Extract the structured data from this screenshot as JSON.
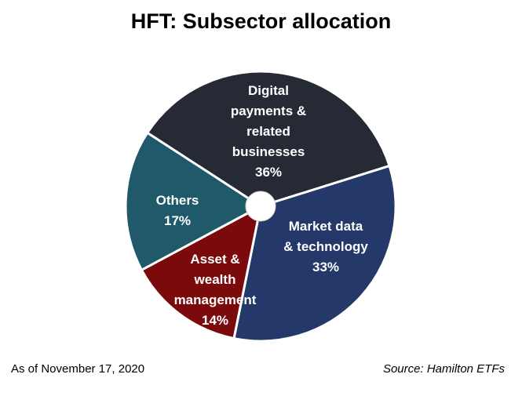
{
  "title": "HFT: Subsector allocation",
  "footer": {
    "date_note": "As of November 17, 2020",
    "source": "Source: Hamilton ETFs"
  },
  "chart_data": {
    "type": "pie",
    "title": "HFT: Subsector allocation",
    "slices": [
      {
        "label": [
          "Digital",
          "payments &",
          "related",
          "businesses"
        ],
        "value_label": "36%",
        "value": 36,
        "color": "#252a35",
        "name": "digital-payments"
      },
      {
        "label": [
          "Market data",
          "& technology"
        ],
        "value_label": "33%",
        "value": 33,
        "color": "#24386a",
        "name": "market-data"
      },
      {
        "label": [
          "Asset &",
          "wealth",
          "management"
        ],
        "value_label": "14%",
        "value": 14,
        "color": "#7b0a0c",
        "name": "asset-wealth"
      },
      {
        "label": [
          "Others"
        ],
        "value_label": "17%",
        "value": 17,
        "color": "#205a6a",
        "name": "others"
      }
    ],
    "hole": true,
    "legend": "none"
  }
}
